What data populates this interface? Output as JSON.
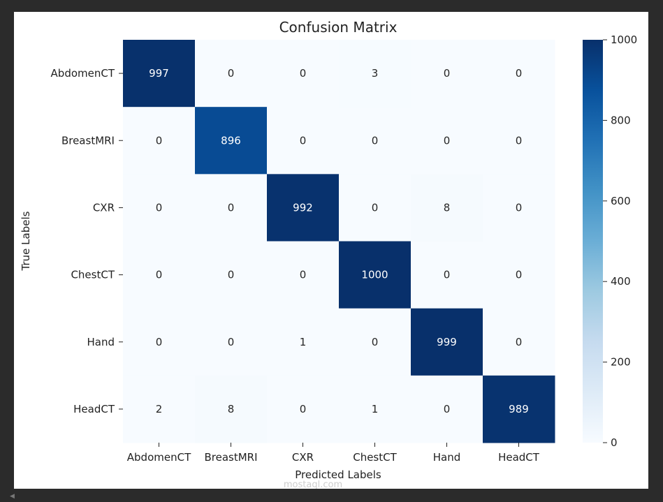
{
  "chart_data": {
    "type": "heatmap",
    "title": "Confusion Matrix",
    "xlabel": "Predicted Labels",
    "ylabel": "True Labels",
    "x_categories": [
      "AbdomenCT",
      "BreastMRI",
      "CXR",
      "ChestCT",
      "Hand",
      "HeadCT"
    ],
    "y_categories": [
      "AbdomenCT",
      "BreastMRI",
      "CXR",
      "ChestCT",
      "Hand",
      "HeadCT"
    ],
    "values": [
      [
        997,
        0,
        0,
        3,
        0,
        0
      ],
      [
        0,
        896,
        0,
        0,
        0,
        0
      ],
      [
        0,
        0,
        992,
        0,
        8,
        0
      ],
      [
        0,
        0,
        0,
        1000,
        0,
        0
      ],
      [
        0,
        0,
        1,
        0,
        999,
        0
      ],
      [
        2,
        8,
        0,
        1,
        0,
        989
      ]
    ],
    "colormap": "Blues",
    "colorbar": {
      "range": [
        0,
        1000
      ],
      "ticks": [
        0,
        200,
        400,
        600,
        800,
        1000
      ]
    }
  },
  "watermark": {
    "text": "mostaql.com"
  }
}
